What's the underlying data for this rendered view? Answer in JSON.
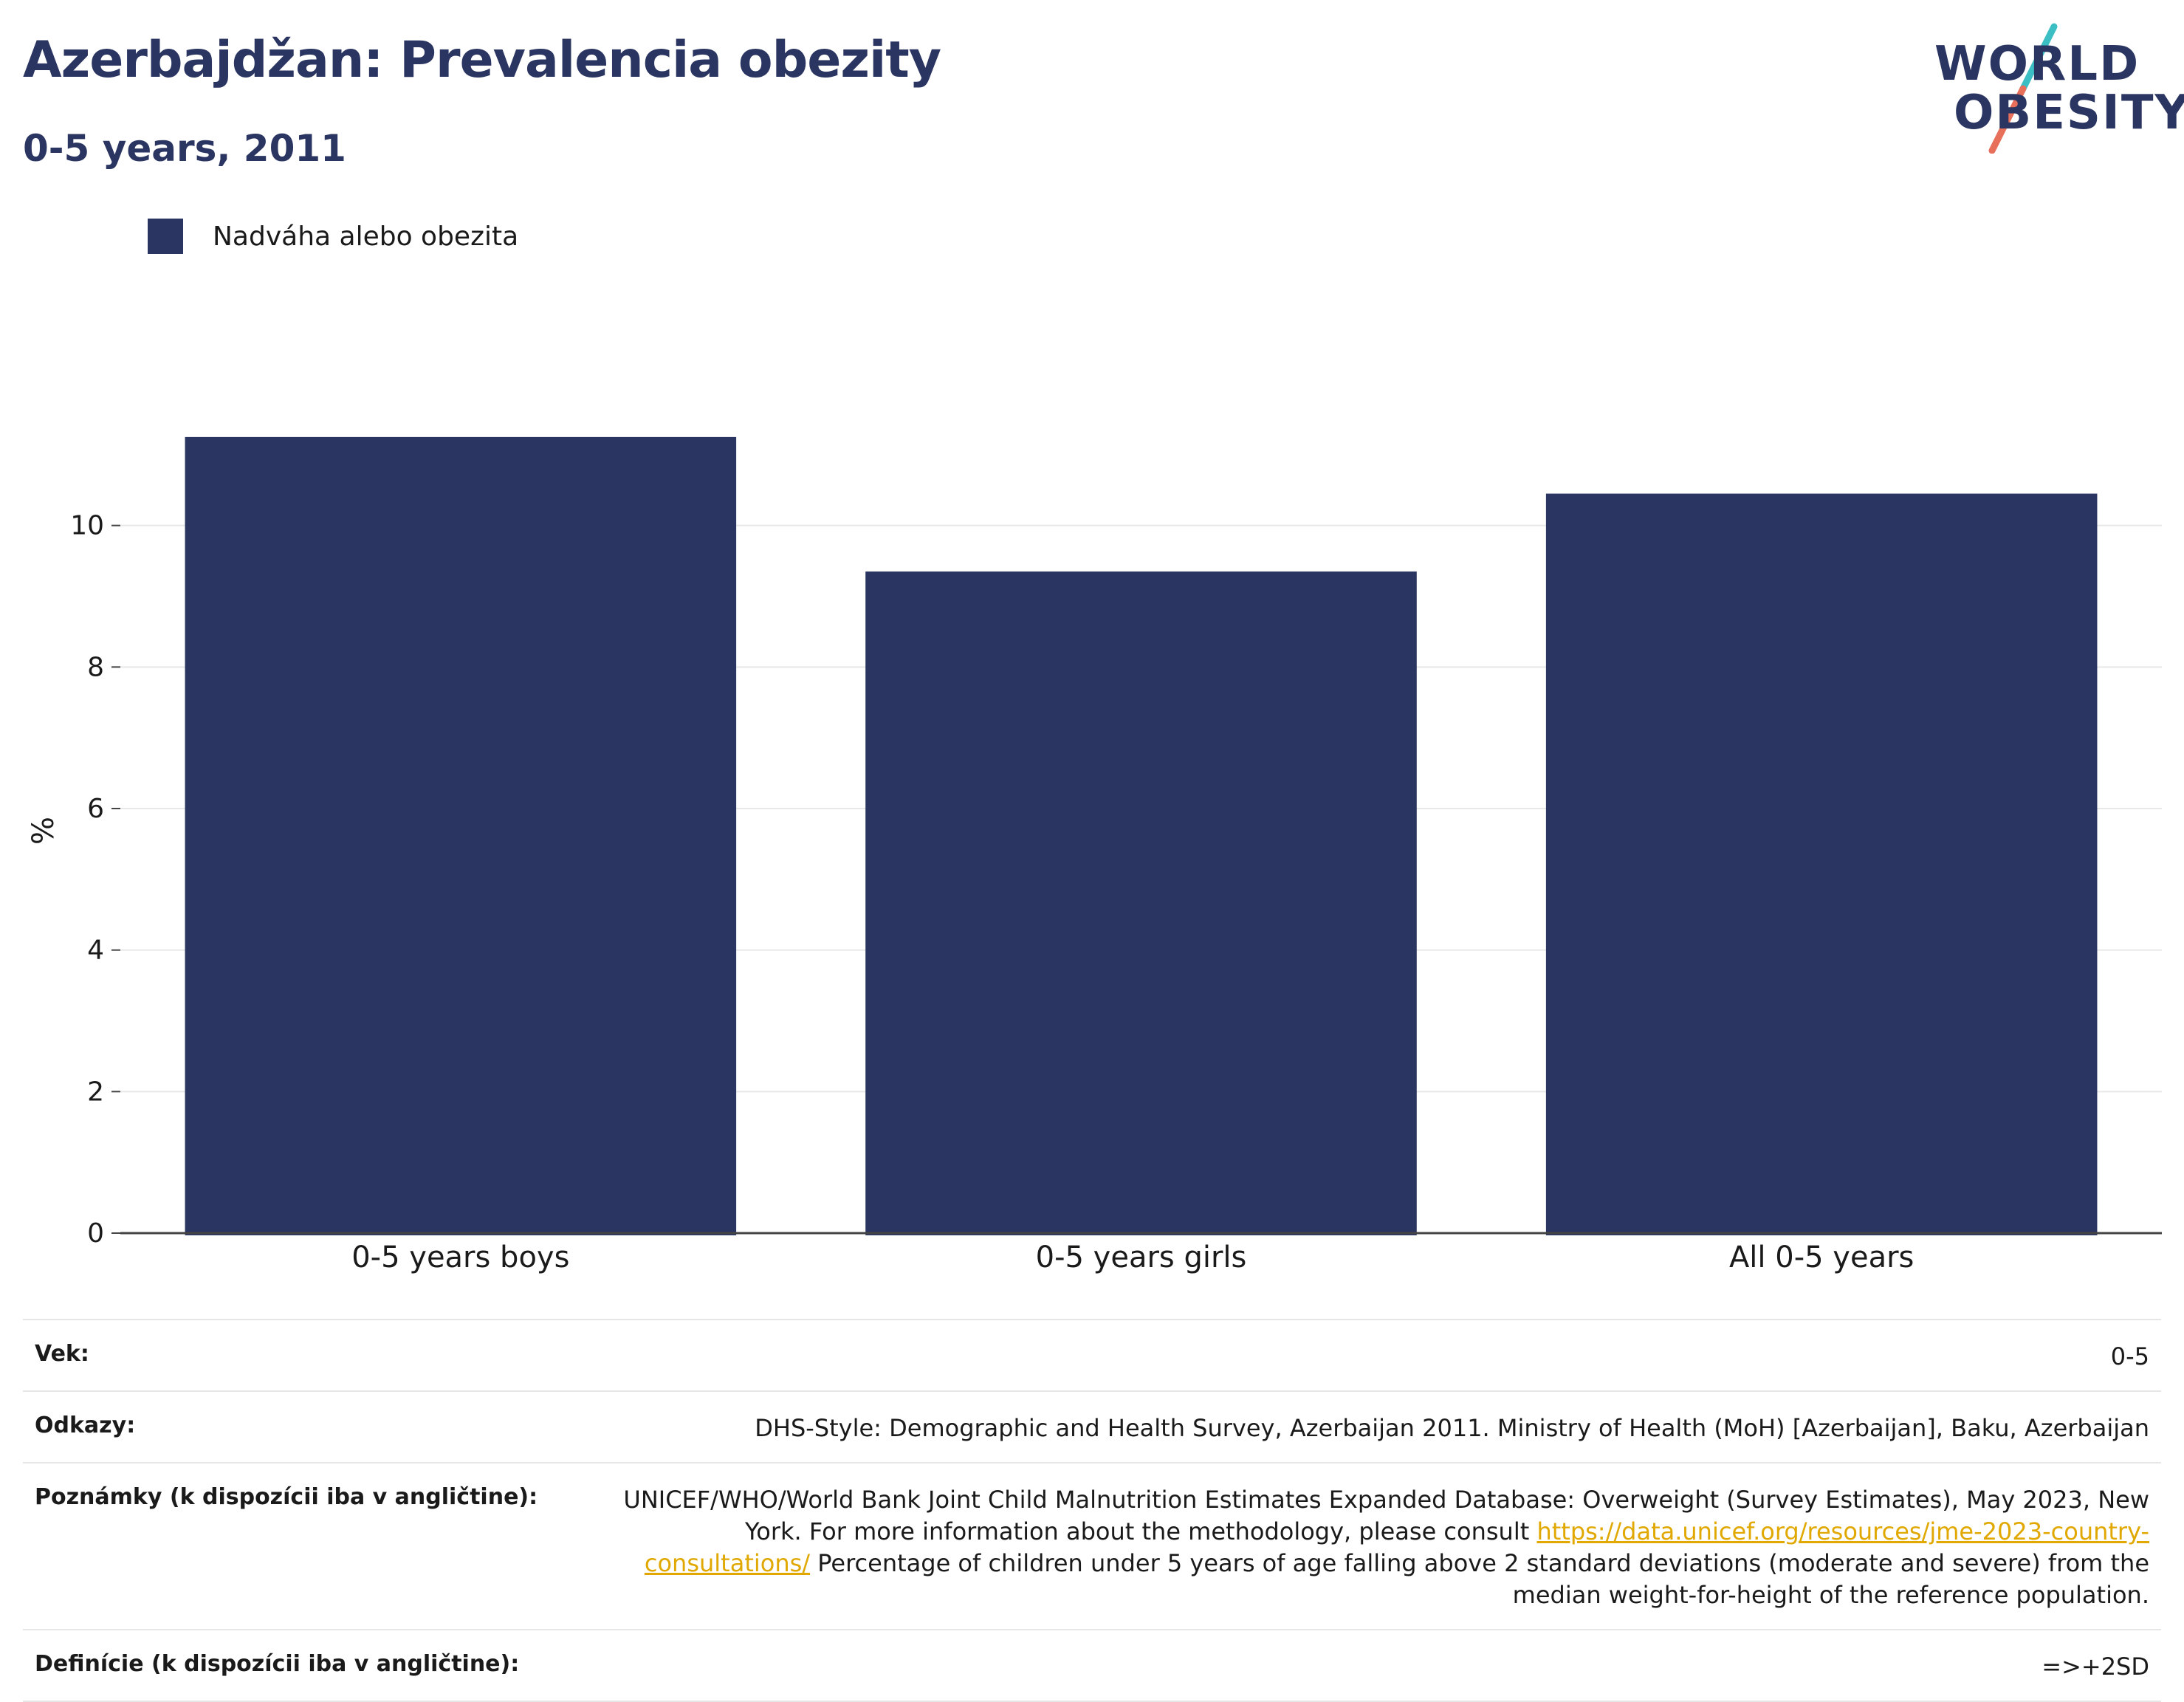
{
  "header": {
    "title": "Azerbajdžan: Prevalencia obezity",
    "subtitle": "0-5 years, 2011"
  },
  "logo": {
    "line1": "WORLD",
    "line2": "OBESITY"
  },
  "colors": {
    "bar": "#2b3561",
    "title": "#2b3561",
    "link": "#e0a800",
    "logo_teal": "#3bbfc4",
    "logo_coral": "#e8705a"
  },
  "chart_data": {
    "type": "bar",
    "title": "Azerbajdžan: Prevalencia obezity",
    "subtitle": "0-5 years, 2011",
    "categories": [
      "0-5 years boys",
      "0-5 years girls",
      "All 0-5 years"
    ],
    "series": [
      {
        "name": "Nadváha alebo obezita",
        "values": [
          11.25,
          9.35,
          10.45
        ]
      }
    ],
    "ylabel": "%",
    "xlabel": "",
    "ylim": [
      0,
      12
    ],
    "yticks": [
      0,
      2,
      4,
      6,
      8,
      10
    ],
    "grid": true,
    "legend_position": "top-left"
  },
  "meta": {
    "age_label": "Vek:",
    "age_value": "0-5",
    "refs_label": "Odkazy:",
    "refs_value": "DHS-Style: Demographic and Health Survey, Azerbaijan 2011. Ministry of Health (MoH) [Azerbaijan], Baku, Azerbaijan",
    "notes_label": "Poznámky (k dispozícii iba v angličtine):",
    "notes_text_before": "UNICEF/WHO/World Bank Joint Child Malnutrition Estimates Expanded Database: Overweight (Survey Estimates), May 2023, New York. For more information about the methodology, please consult ",
    "notes_link": "https://data.unicef.org/resources/jme-2023-country-consultations/",
    "notes_text_after": " Percentage of children under 5 years of age falling above 2 standard deviations (moderate and severe) from the median weight-for-height of the reference population.",
    "def_label": "Definície (k dispozícii iba v angličtine):",
    "def_value": "=>+2SD"
  }
}
